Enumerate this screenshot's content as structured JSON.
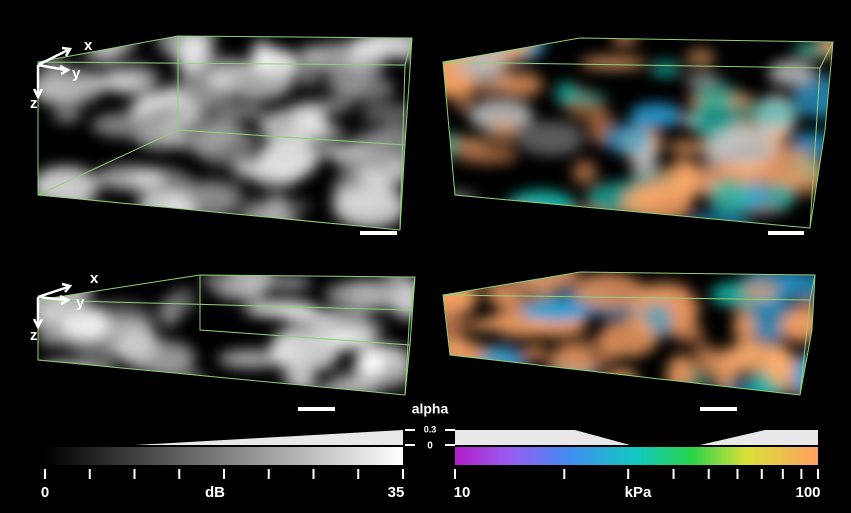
{
  "panels": [
    {
      "axes": [
        "x",
        "y",
        "z"
      ]
    },
    {
      "axes": [
        "x",
        "y",
        "z"
      ]
    }
  ],
  "alpha_scale": {
    "title": "alpha",
    "ticks": [
      0.3,
      0
    ]
  },
  "grayscale_bar": {
    "min": 0,
    "label": "dB",
    "max": 35
  },
  "color_bar": {
    "min": 10,
    "label": "kPa",
    "max": 100
  }
}
